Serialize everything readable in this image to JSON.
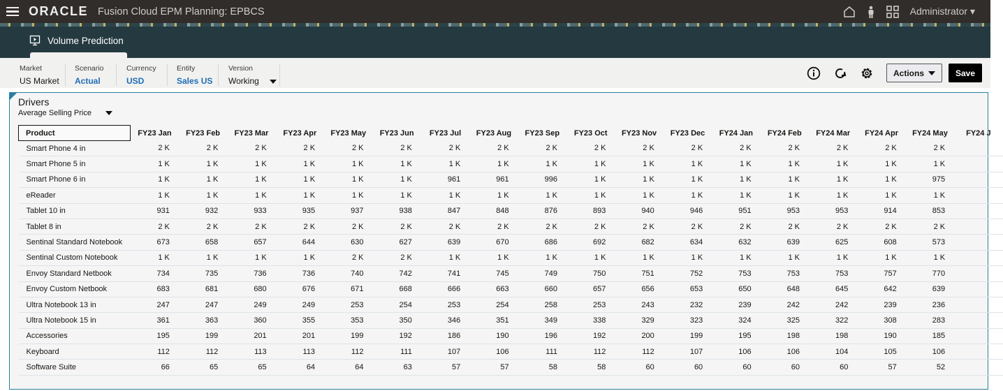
{
  "app": {
    "logo": "ORACLE",
    "title": "Fusion Cloud EPM Planning:  EPBCS",
    "user": "Administrator"
  },
  "tab": {
    "label": "Volume Prediction"
  },
  "pov": [
    {
      "label": "Market",
      "value": "US Market"
    },
    {
      "label": "Scenario",
      "value": "Actual"
    },
    {
      "label": "Currency",
      "value": "USD"
    },
    {
      "label": "Entity",
      "value": "Sales US"
    },
    {
      "label": "Version",
      "value": "Working"
    }
  ],
  "toolbar": {
    "actions_label": "Actions",
    "save_label": "Save"
  },
  "form": {
    "title": "Drivers",
    "selector": "Average Selling Price",
    "product_header": "Product"
  },
  "columns": [
    "FY23 Jan",
    "FY23 Feb",
    "FY23 Mar",
    "FY23 Apr",
    "FY23 May",
    "FY23 Jun",
    "FY23 Jul",
    "FY23 Aug",
    "FY23 Sep",
    "FY23 Oct",
    "FY23 Nov",
    "FY23 Dec",
    "FY24 Jan",
    "FY24 Feb",
    "FY24 Mar",
    "FY24 Apr",
    "FY24 May",
    "FY24 J"
  ],
  "rows": [
    {
      "product": "Smart Phone 4 in",
      "values": [
        "2 K",
        "2 K",
        "2 K",
        "2 K",
        "2 K",
        "2 K",
        "2 K",
        "2 K",
        "2 K",
        "2 K",
        "2 K",
        "2 K",
        "2 K",
        "2 K",
        "2 K",
        "2 K",
        "2 K",
        ""
      ]
    },
    {
      "product": "Smart Phone 5 in",
      "values": [
        "1 K",
        "1 K",
        "1 K",
        "1 K",
        "1 K",
        "1 K",
        "1 K",
        "1 K",
        "1 K",
        "1 K",
        "1 K",
        "1 K",
        "1 K",
        "1 K",
        "1 K",
        "1 K",
        "1 K",
        ""
      ]
    },
    {
      "product": "Smart Phone 6 in",
      "values": [
        "1 K",
        "1 K",
        "1 K",
        "1 K",
        "1 K",
        "1 K",
        "961",
        "961",
        "996",
        "1 K",
        "1 K",
        "1 K",
        "1 K",
        "1 K",
        "1 K",
        "1 K",
        "975",
        ""
      ]
    },
    {
      "product": "eReader",
      "values": [
        "1 K",
        "1 K",
        "1 K",
        "1 K",
        "1 K",
        "1 K",
        "1 K",
        "1 K",
        "1 K",
        "1 K",
        "1 K",
        "1 K",
        "1 K",
        "1 K",
        "1 K",
        "1 K",
        "1 K",
        ""
      ]
    },
    {
      "product": "Tablet 10 in",
      "values": [
        "931",
        "932",
        "933",
        "935",
        "937",
        "938",
        "847",
        "848",
        "876",
        "893",
        "940",
        "946",
        "951",
        "953",
        "953",
        "914",
        "853",
        ""
      ]
    },
    {
      "product": "Tablet 8 in",
      "values": [
        "2 K",
        "2 K",
        "2 K",
        "2 K",
        "2 K",
        "2 K",
        "2 K",
        "2 K",
        "2 K",
        "2 K",
        "2 K",
        "2 K",
        "2 K",
        "2 K",
        "2 K",
        "2 K",
        "2 K",
        ""
      ]
    },
    {
      "product": "Sentinal Standard Notebook",
      "values": [
        "673",
        "658",
        "657",
        "644",
        "630",
        "627",
        "639",
        "670",
        "686",
        "692",
        "682",
        "634",
        "632",
        "639",
        "625",
        "608",
        "573",
        ""
      ]
    },
    {
      "product": "Sentinal Custom Notebook",
      "values": [
        "1 K",
        "1 K",
        "1 K",
        "1 K",
        "2 K",
        "2 K",
        "1 K",
        "1 K",
        "1 K",
        "1 K",
        "1 K",
        "1 K",
        "1 K",
        "1 K",
        "1 K",
        "1 K",
        "1 K",
        ""
      ]
    },
    {
      "product": "Envoy Standard Netbook",
      "values": [
        "734",
        "735",
        "736",
        "736",
        "740",
        "742",
        "741",
        "745",
        "749",
        "750",
        "751",
        "752",
        "753",
        "753",
        "753",
        "757",
        "770",
        ""
      ]
    },
    {
      "product": "Envoy Custom Netbook",
      "values": [
        "683",
        "681",
        "680",
        "676",
        "671",
        "668",
        "666",
        "663",
        "660",
        "657",
        "656",
        "653",
        "650",
        "648",
        "645",
        "642",
        "639",
        ""
      ]
    },
    {
      "product": "Ultra Notebook 13 in",
      "values": [
        "247",
        "247",
        "249",
        "249",
        "253",
        "254",
        "253",
        "254",
        "258",
        "253",
        "243",
        "232",
        "239",
        "242",
        "242",
        "239",
        "236",
        ""
      ]
    },
    {
      "product": "Ultra Notebook 15 in",
      "values": [
        "361",
        "363",
        "360",
        "355",
        "353",
        "350",
        "346",
        "351",
        "349",
        "338",
        "329",
        "323",
        "324",
        "325",
        "322",
        "308",
        "283",
        ""
      ]
    },
    {
      "product": "Accessories",
      "values": [
        "195",
        "199",
        "201",
        "201",
        "199",
        "192",
        "186",
        "190",
        "196",
        "192",
        "200",
        "199",
        "195",
        "198",
        "198",
        "190",
        "185",
        ""
      ]
    },
    {
      "product": "Keyboard",
      "values": [
        "112",
        "112",
        "113",
        "113",
        "112",
        "111",
        "107",
        "106",
        "111",
        "112",
        "112",
        "107",
        "106",
        "106",
        "104",
        "105",
        "106",
        ""
      ]
    },
    {
      "product": "Software Suite",
      "values": [
        "66",
        "65",
        "65",
        "64",
        "64",
        "63",
        "57",
        "57",
        "58",
        "58",
        "60",
        "60",
        "60",
        "60",
        "60",
        "57",
        "52",
        ""
      ]
    }
  ]
}
